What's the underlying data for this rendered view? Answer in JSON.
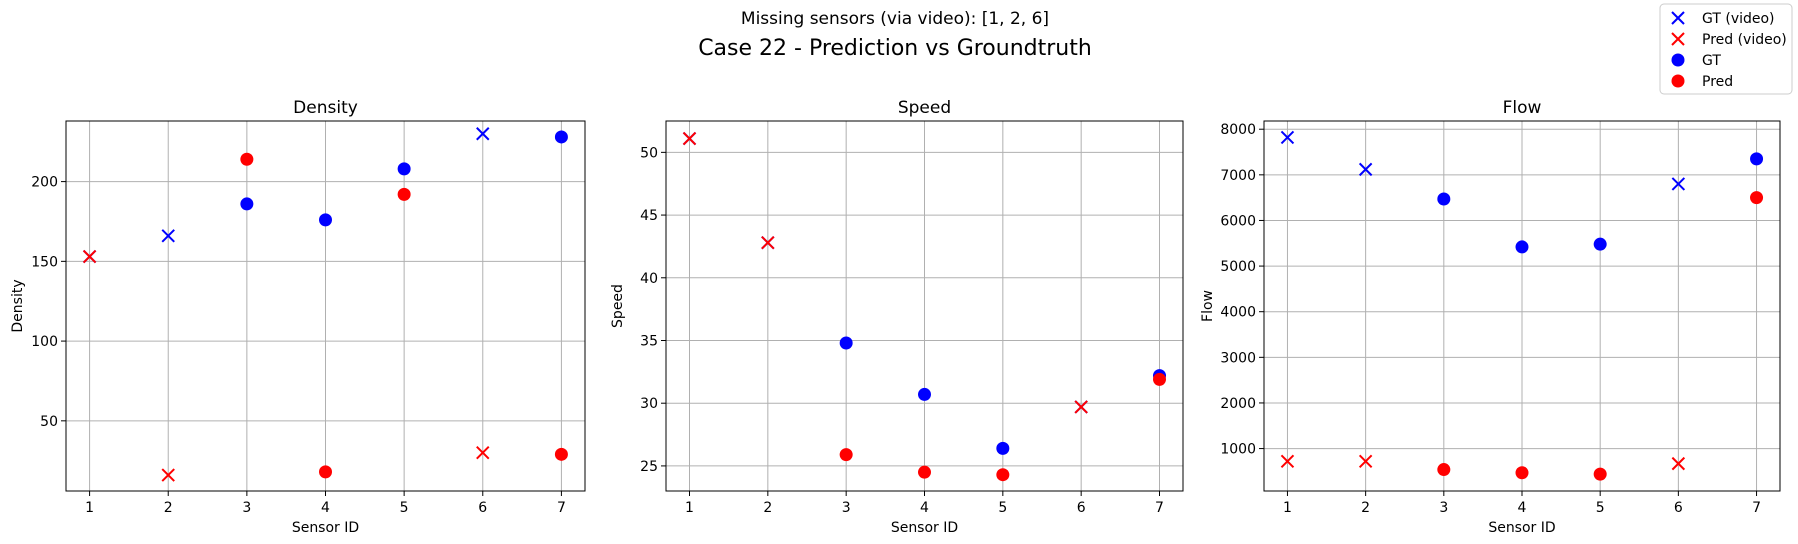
{
  "figure": {
    "subtitle": "Missing sensors (via video): [1, 2, 6]",
    "title": "Case 22 - Prediction vs Groundtruth"
  },
  "legend": {
    "placement": "top-right",
    "entries": [
      {
        "label": "GT (video)",
        "marker": "x",
        "color": "#0000ff"
      },
      {
        "label": "Pred (video)",
        "marker": "x",
        "color": "#ff0000"
      },
      {
        "label": "GT",
        "marker": "circle",
        "color": "#0000ff"
      },
      {
        "label": "Pred",
        "marker": "circle",
        "color": "#ff0000"
      }
    ]
  },
  "chart_data": [
    {
      "type": "scatter",
      "title": "Density",
      "xlabel": "Sensor ID",
      "ylabel": "Density",
      "xlim": [
        0.7,
        7.3
      ],
      "ylim": [
        6,
        238
      ],
      "xticks": [
        1,
        2,
        3,
        4,
        5,
        6,
        7
      ],
      "yticks": [
        50,
        100,
        150,
        200
      ],
      "grid": true,
      "series": [
        {
          "name": "GT (video)",
          "marker": "x",
          "color": "#0000ff",
          "x": [
            1,
            2,
            6
          ],
          "y": [
            153,
            166,
            230
          ]
        },
        {
          "name": "Pred (video)",
          "marker": "x",
          "color": "#ff0000",
          "x": [
            1,
            2,
            6
          ],
          "y": [
            153,
            16,
            30
          ]
        },
        {
          "name": "GT",
          "marker": "circle",
          "color": "#0000ff",
          "x": [
            3,
            4,
            5,
            7
          ],
          "y": [
            186,
            176,
            208,
            228
          ]
        },
        {
          "name": "Pred",
          "marker": "circle",
          "color": "#ff0000",
          "x": [
            3,
            4,
            5,
            7
          ],
          "y": [
            214,
            18,
            192,
            29
          ]
        }
      ]
    },
    {
      "type": "scatter",
      "title": "Speed",
      "xlabel": "Sensor ID",
      "ylabel": "Speed",
      "xlim": [
        0.7,
        7.3
      ],
      "ylim": [
        23,
        52.5
      ],
      "xticks": [
        1,
        2,
        3,
        4,
        5,
        6,
        7
      ],
      "yticks": [
        25,
        30,
        35,
        40,
        45,
        50
      ],
      "grid": true,
      "series": [
        {
          "name": "GT (video)",
          "marker": "x",
          "color": "#0000ff",
          "x": [
            1,
            2,
            6
          ],
          "y": [
            51.1,
            42.8,
            29.7
          ]
        },
        {
          "name": "Pred (video)",
          "marker": "x",
          "color": "#ff0000",
          "x": [
            1,
            2,
            6
          ],
          "y": [
            51.1,
            42.8,
            29.7
          ]
        },
        {
          "name": "GT",
          "marker": "circle",
          "color": "#0000ff",
          "x": [
            3,
            4,
            5,
            7
          ],
          "y": [
            34.8,
            30.7,
            26.4,
            32.2
          ]
        },
        {
          "name": "Pred",
          "marker": "circle",
          "color": "#ff0000",
          "x": [
            3,
            4,
            5,
            7
          ],
          "y": [
            25.9,
            24.5,
            24.3,
            31.9
          ]
        }
      ]
    },
    {
      "type": "scatter",
      "title": "Flow",
      "xlabel": "Sensor ID",
      "ylabel": "Flow",
      "xlim": [
        0.7,
        7.3
      ],
      "ylim": [
        70,
        8180
      ],
      "xticks": [
        1,
        2,
        3,
        4,
        5,
        6,
        7
      ],
      "yticks": [
        1000,
        2000,
        3000,
        4000,
        5000,
        6000,
        7000,
        8000
      ],
      "grid": true,
      "series": [
        {
          "name": "GT (video)",
          "marker": "x",
          "color": "#0000ff",
          "x": [
            1,
            2,
            6
          ],
          "y": [
            7820,
            7120,
            6800
          ]
        },
        {
          "name": "Pred (video)",
          "marker": "x",
          "color": "#ff0000",
          "x": [
            1,
            2,
            6
          ],
          "y": [
            720,
            720,
            670
          ]
        },
        {
          "name": "GT",
          "marker": "circle",
          "color": "#0000ff",
          "x": [
            3,
            4,
            5,
            7
          ],
          "y": [
            6470,
            5420,
            5480,
            7350
          ]
        },
        {
          "name": "Pred",
          "marker": "circle",
          "color": "#ff0000",
          "x": [
            3,
            4,
            5,
            7
          ],
          "y": [
            540,
            470,
            440,
            6500
          ]
        }
      ]
    }
  ]
}
